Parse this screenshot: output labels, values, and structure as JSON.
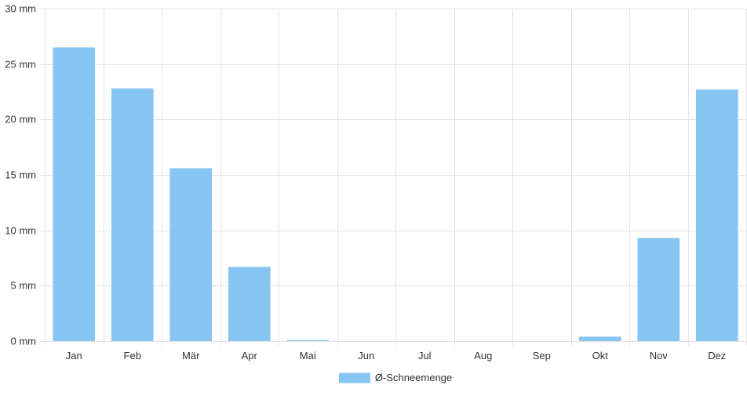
{
  "colors": {
    "bar": "#87c5f2",
    "grid": "#e3e3e3",
    "axis_text": "#333333"
  },
  "legend": {
    "label": "Ø-Schneemenge",
    "position": "bottom-center"
  },
  "chart_data": {
    "type": "bar",
    "categories": [
      "Jan",
      "Feb",
      "Mär",
      "Apr",
      "Mai",
      "Jun",
      "Jul",
      "Aug",
      "Sep",
      "Okt",
      "Nov",
      "Dez"
    ],
    "series": [
      {
        "name": "Ø-Schneemenge",
        "values": [
          26.5,
          22.8,
          15.6,
          6.7,
          0.1,
          0,
          0,
          0,
          0,
          0.4,
          9.3,
          22.7
        ]
      }
    ],
    "y_ticks": [
      "0 mm",
      "5 mm",
      "10 mm",
      "15 mm",
      "20 mm",
      "25 mm",
      "30 mm"
    ],
    "y_unit": "mm",
    "ylim": [
      0,
      30
    ],
    "grid": true,
    "title": "",
    "xlabel": "",
    "ylabel": ""
  }
}
